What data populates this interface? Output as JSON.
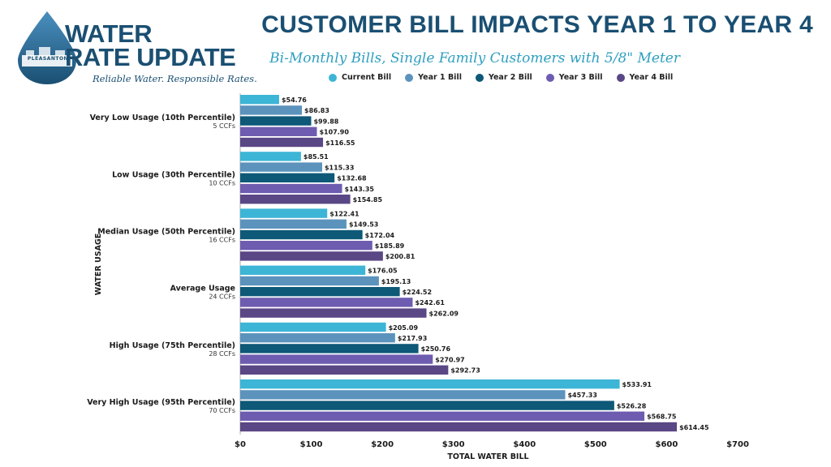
{
  "logo": {
    "line1": "WATER",
    "line2": "RATE UPDATE",
    "tagline": "Reliable Water. Responsible Rates.",
    "city": "PLEASANTON"
  },
  "colors": {
    "navy": "#1a4f72",
    "accent": "#2e9fc0"
  },
  "chart_data": {
    "type": "bar",
    "orientation": "horizontal",
    "title": "CUSTOMER BILL IMPACTS YEAR 1 TO YEAR 4",
    "subtitle": "Bi-Monthly Bills, Single Family Customers with 5/8\" Meter",
    "xlabel": "TOTAL WATER BILL",
    "ylabel": "WATER USAGE",
    "xlim": [
      0,
      700
    ],
    "x_ticks": [
      0,
      100,
      200,
      300,
      400,
      500,
      600,
      700
    ],
    "x_tick_labels": [
      "$0",
      "$100",
      "$200",
      "$300",
      "$400",
      "$500",
      "$600",
      "$700"
    ],
    "grid": false,
    "legend_position": "top",
    "categories": [
      {
        "name": "Very Low Usage (10th Percentile)",
        "sub": "5 CCFs"
      },
      {
        "name": "Low Usage (30th Percentile)",
        "sub": "10 CCFs"
      },
      {
        "name": "Median Usage (50th Percentile)",
        "sub": "16 CCFs"
      },
      {
        "name": "Average Usage",
        "sub": "24 CCFs"
      },
      {
        "name": "High Usage (75th Percentile)",
        "sub": "28 CCFs"
      },
      {
        "name": "Very High Usage (95th Percentile)",
        "sub": "70 CCFs"
      }
    ],
    "series": [
      {
        "name": "Current Bill",
        "color": "#3db5d6",
        "values": [
          54.76,
          85.51,
          122.41,
          176.05,
          205.09,
          533.91
        ],
        "labels": [
          "$54.76",
          "$85.51",
          "$122.41",
          "$176.05",
          "$205.09",
          "$533.91"
        ]
      },
      {
        "name": "Year 1 Bill",
        "color": "#5b93bd",
        "values": [
          86.83,
          115.33,
          149.53,
          195.13,
          217.93,
          457.33
        ],
        "labels": [
          "$86.83",
          "$115.33",
          "$149.53",
          "$195.13",
          "$217.93",
          "$457.33"
        ]
      },
      {
        "name": "Year 2 Bill",
        "color": "#0e5878",
        "values": [
          99.88,
          132.68,
          172.04,
          224.52,
          250.76,
          526.28
        ],
        "labels": [
          "$99.88",
          "$132.68",
          "$172.04",
          "$224.52",
          "$250.76",
          "$526.28"
        ]
      },
      {
        "name": "Year 3 Bill",
        "color": "#6e5cb0",
        "values": [
          107.9,
          143.35,
          185.89,
          242.61,
          270.97,
          568.75
        ],
        "labels": [
          "$107.90",
          "$143.35",
          "$185.89",
          "$242.61",
          "$270.97",
          "$568.75"
        ]
      },
      {
        "name": "Year 4 Bill",
        "color": "#5a4785",
        "values": [
          116.55,
          154.85,
          200.81,
          262.09,
          292.73,
          614.45
        ],
        "labels": [
          "$116.55",
          "$154.85",
          "$200.81",
          "$262.09",
          "$292.73",
          "$614.45"
        ]
      }
    ]
  }
}
